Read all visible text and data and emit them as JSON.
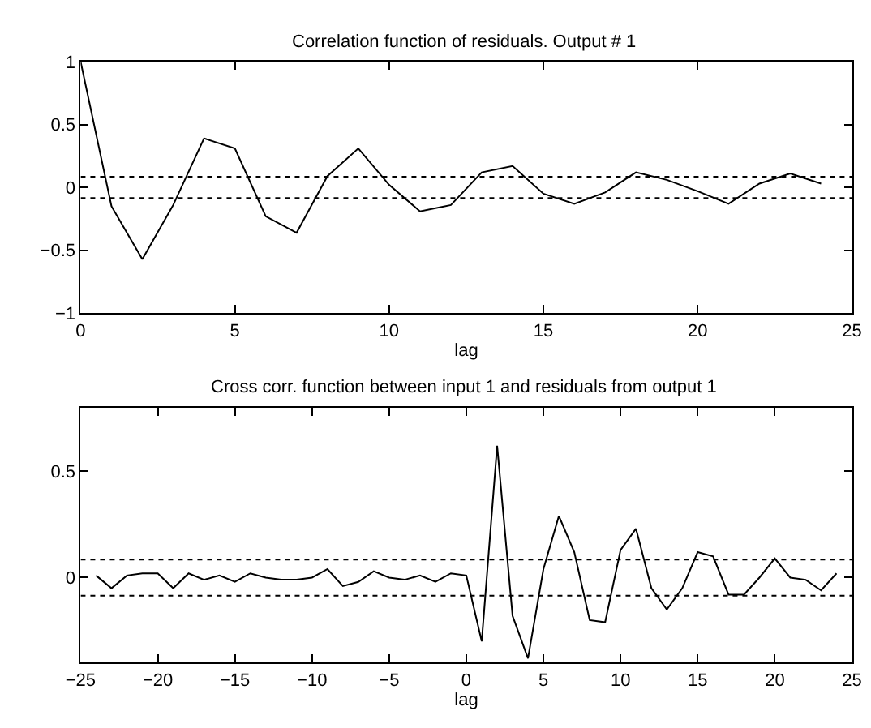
{
  "chart_data": [
    {
      "type": "line",
      "title": "Correlation function of residuals. Output # 1",
      "xlabel": "lag",
      "x": [
        0,
        1,
        2,
        3,
        4,
        5,
        6,
        7,
        8,
        9,
        10,
        11,
        12,
        13,
        14,
        15,
        16,
        17,
        18,
        19,
        20,
        21,
        22,
        23,
        24
      ],
      "series": [
        {
          "color": "#000000",
          "values": [
            1,
            -0.15,
            -0.57,
            -0.14,
            0.39,
            0.31,
            -0.23,
            -0.36,
            0.09,
            0.31,
            0.02,
            -0.19,
            -0.14,
            0.12,
            0.17,
            -0.05,
            -0.13,
            -0.04,
            0.12,
            0.06,
            -0.03,
            -0.13,
            0.03,
            0.11,
            0.03
          ]
        }
      ],
      "xlim": [
        0,
        25
      ],
      "xticks": [
        0,
        5,
        10,
        15,
        20,
        25
      ],
      "ylim": [
        -1,
        1
      ],
      "yticks": [
        -1,
        -0.5,
        0,
        0.5,
        1
      ],
      "ref_lines": [
        {
          "axis": "y",
          "value": 0.085,
          "color": "#000000",
          "line_style": "dotted"
        },
        {
          "axis": "y",
          "value": -0.085,
          "color": "#000000",
          "line_style": "dotted"
        }
      ]
    },
    {
      "type": "line",
      "title": "Cross corr. function between input 1 and residuals from output 1",
      "xlabel": "lag",
      "x": [
        -24,
        -23,
        -22,
        -21,
        -20,
        -19,
        -18,
        -17,
        -16,
        -15,
        -14,
        -13,
        -12,
        -11,
        -10,
        -9,
        -8,
        -7,
        -6,
        -5,
        -4,
        -3,
        -2,
        -1,
        0,
        1,
        2,
        3,
        4,
        5,
        6,
        7,
        8,
        9,
        10,
        11,
        12,
        13,
        14,
        15,
        16,
        17,
        18,
        19,
        20,
        21,
        22,
        23,
        24
      ],
      "series": [
        {
          "color": "#000000",
          "values": [
            0.01,
            -0.05,
            0.01,
            0.02,
            0.02,
            -0.05,
            0.02,
            -0.01,
            0.01,
            -0.02,
            0.02,
            0.0,
            -0.01,
            -0.01,
            0.0,
            0.04,
            -0.04,
            -0.02,
            0.03,
            0.0,
            -0.01,
            0.01,
            -0.02,
            0.02,
            0.01,
            -0.3,
            0.62,
            -0.18,
            -0.38,
            0.04,
            0.29,
            0.12,
            -0.2,
            -0.21,
            0.13,
            0.23,
            -0.05,
            -0.15,
            -0.05,
            0.12,
            0.1,
            -0.08,
            -0.08,
            0.0,
            0.09,
            0.0,
            -0.01,
            -0.06,
            0.02
          ]
        }
      ],
      "xlim": [
        -25,
        25
      ],
      "xticks": [
        -25,
        -20,
        -15,
        -10,
        -5,
        0,
        5,
        10,
        15,
        20,
        25
      ],
      "ylim": [
        -0.4,
        0.8
      ],
      "yticks": [
        0,
        0.5
      ],
      "ref_lines": [
        {
          "axis": "y",
          "value": 0.085,
          "color": "#000000",
          "line_style": "dotted"
        },
        {
          "axis": "y",
          "value": -0.085,
          "color": "#000000",
          "line_style": "dotted"
        }
      ]
    }
  ]
}
